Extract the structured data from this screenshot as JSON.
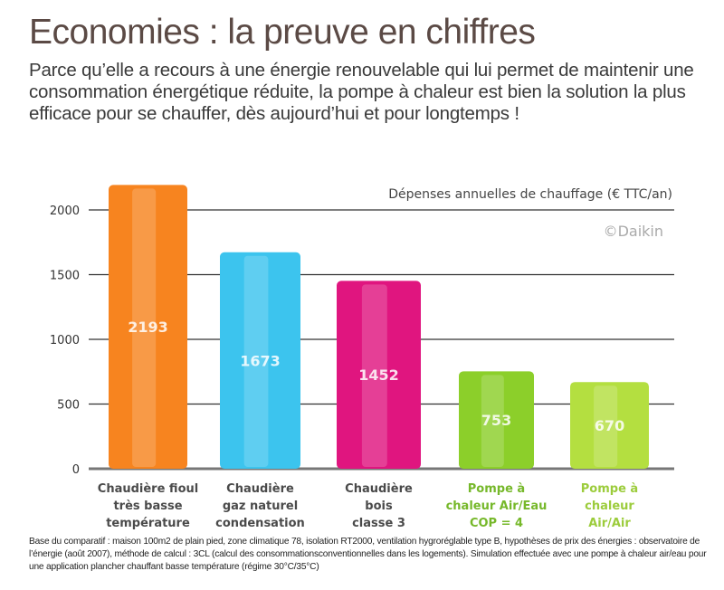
{
  "title": "Economies : la preuve en chiffres",
  "subtitle": "Parce qu’elle a recours à une énergie renouvelable qui lui permet de maintenir une consommation énergétique  réduite, la pompe à chaleur est bien la solution la plus efficace pour se chauffer, dès aujourd’hui et pour longtemps !",
  "copyright": "©Daikin",
  "footnote": "Base du comparatif : maison 100m2 de plain pied, zone climatique 78, isolation RT2000, ventilation hygroréglable type B, hypothèses de prix des énergies : observatoire de l’énergie (août 2007), méthode de calcul : 3CL (calcul des consommationsconventionnelles dans les logements). Simulation effectuée avec une pompe à chaleur air/eau pour une application plancher chauffant basse température (régime 30°C/35°C)",
  "chart_data": {
    "type": "bar",
    "title": "Dépenses annuelles de chauffage (€ TTC/an)",
    "categories": [
      [
        "Chaudière fioul",
        "très basse",
        "température"
      ],
      [
        "Chaudière",
        "gaz naturel",
        "condensation"
      ],
      [
        "Chaudière",
        "bois",
        "classe 3"
      ],
      [
        "Pompe à",
        "chaleur Air/Eau",
        "COP = 4"
      ],
      [
        "Pompe à",
        "chaleur",
        "Air/Air"
      ]
    ],
    "values": [
      2193,
      1673,
      1452,
      753,
      670
    ],
    "data_labels": [
      "2193",
      "1673",
      "1452",
      "753",
      "670"
    ],
    "yticks": [
      0,
      500,
      1000,
      1500,
      2000
    ],
    "ylim": [
      0,
      2100
    ],
    "grid": true,
    "colors": [
      "#f7841f",
      "#3cc4ee",
      "#e0157f",
      "#8ccf2a",
      "#b4df40"
    ],
    "label_colors": [
      "#4a4a4a",
      "#4a4a4a",
      "#4a4a4a",
      "#76b82a",
      "#9ccc3c"
    ]
  }
}
